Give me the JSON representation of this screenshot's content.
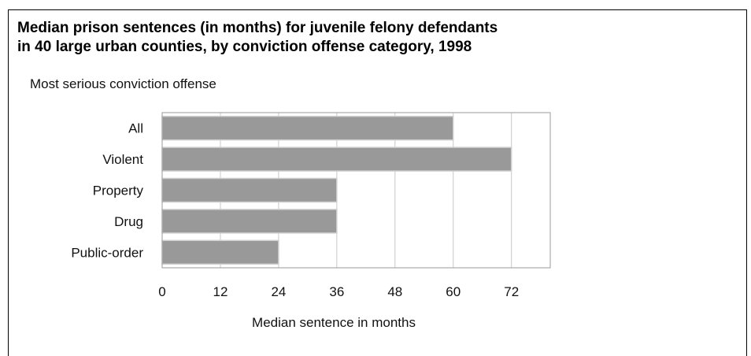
{
  "chart_data": {
    "type": "bar",
    "orientation": "horizontal",
    "title_lines": [
      "Median prison sentences (in months) for juvenile felony defendants",
      "in 40 large urban counties, by conviction offense category, 1998"
    ],
    "ylabel": "Most serious conviction offense",
    "xlabel": "Median sentence in months",
    "categories": [
      "All",
      "Violent",
      "Property",
      "Drug",
      "Public-order"
    ],
    "values": [
      60,
      72,
      36,
      36,
      24
    ],
    "xlim": [
      0,
      80
    ],
    "xticks": [
      0,
      12,
      24,
      36,
      48,
      60,
      72
    ],
    "grid": "vertical",
    "bar_color": "#999999",
    "bar_edge_color": "#cfcfcf",
    "axis_color": "#9a9a9a",
    "grid_color": "#c8c8c8"
  }
}
